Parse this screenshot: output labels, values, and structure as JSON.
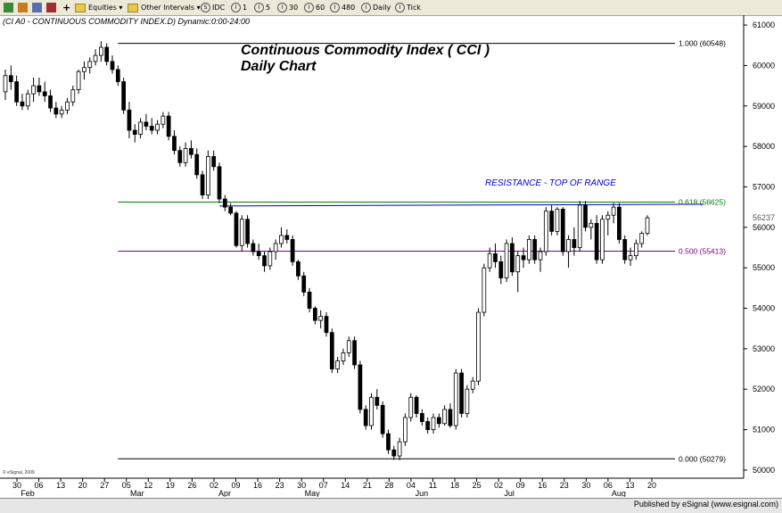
{
  "toolbar": {
    "equities": "Equities",
    "other_intervals": "Other Intervals",
    "idc": "IDC",
    "b1": "1",
    "b5": "5",
    "b30": "30",
    "b60": "60",
    "b480": "480",
    "daily": "Daily",
    "tick": "Tick"
  },
  "symbol_line": "(CI A0 - CONTINUOUS COMMODITY INDEX.D) Dynamic:0:00-24:00",
  "copyright": "© eSignal, 2009",
  "published": "Published by eSignal (www.esignal.com)",
  "colors": {
    "fib_top": "#000000",
    "fib_618": "#008000",
    "fib_500": "#800080",
    "fib_0": "#000000",
    "resistance": "#0000cc",
    "candle_down": "#000000",
    "candle_up": "#ffffff"
  },
  "chart_data": {
    "type": "candlestick",
    "title": "Continuous Commodity Index ( CCI )",
    "subtitle": "Daily Chart",
    "annotation": "RESISTANCE - TOP OF RANGE",
    "ylim": [
      49800,
      61200
    ],
    "y_ticks": [
      {
        "value": 61000,
        "label": "61000"
      },
      {
        "value": 60000,
        "label": "60000"
      },
      {
        "value": 59000,
        "label": "59000"
      },
      {
        "value": 58000,
        "label": "58000"
      },
      {
        "value": 57000,
        "label": "57000"
      },
      {
        "value": 56000,
        "label": "56000"
      },
      {
        "value": 55000,
        "label": "55000"
      },
      {
        "value": 54000,
        "label": "54000"
      },
      {
        "value": 53000,
        "label": "53000"
      },
      {
        "value": 52000,
        "label": "52000"
      },
      {
        "value": 51000,
        "label": "51000"
      },
      {
        "value": 50000,
        "label": "50000"
      }
    ],
    "last_price": {
      "value": 56237,
      "label": "56237"
    },
    "fib_levels": [
      {
        "value": 60548,
        "label": "1.000 (60548)",
        "color": "#000000"
      },
      {
        "value": 56625,
        "label": "0.618 (56625)",
        "color": "#008000"
      },
      {
        "value": 55413,
        "label": "0.500 (55413)",
        "color": "#800080"
      },
      {
        "value": 50279,
        "label": "0.000 (50279)",
        "color": "#000000"
      }
    ],
    "resistance_line": {
      "value": 56550
    },
    "x_day_ticks": [
      "30",
      "06",
      "13",
      "20",
      "27",
      "05",
      "12",
      "19",
      "26",
      "02",
      "09",
      "16",
      "23",
      "30",
      "07",
      "14",
      "21",
      "28",
      "04",
      "11",
      "18",
      "25",
      "02",
      "09",
      "16",
      "23",
      "30",
      "06",
      "13",
      "20"
    ],
    "x_month_labels": [
      {
        "label": "Feb",
        "day_index": 0
      },
      {
        "label": "Mar",
        "day_index": 5
      },
      {
        "label": "Apr",
        "day_index": 9
      },
      {
        "label": "May",
        "day_index": 13
      },
      {
        "label": "Jun",
        "day_index": 18
      },
      {
        "label": "Jul",
        "day_index": 22
      },
      {
        "label": "Aug",
        "day_index": 27
      }
    ],
    "candles": [
      {
        "o": 59350,
        "h": 59900,
        "l": 59150,
        "c": 59750
      },
      {
        "o": 59750,
        "h": 60000,
        "l": 59400,
        "c": 59600
      },
      {
        "o": 59600,
        "h": 59750,
        "l": 59000,
        "c": 59100
      },
      {
        "o": 59100,
        "h": 59300,
        "l": 58900,
        "c": 59000
      },
      {
        "o": 59000,
        "h": 59400,
        "l": 58900,
        "c": 59300
      },
      {
        "o": 59300,
        "h": 59700,
        "l": 59100,
        "c": 59500
      },
      {
        "o": 59500,
        "h": 59700,
        "l": 59250,
        "c": 59350
      },
      {
        "o": 59350,
        "h": 59600,
        "l": 59100,
        "c": 59250
      },
      {
        "o": 59250,
        "h": 59400,
        "l": 58850,
        "c": 58950
      },
      {
        "o": 58950,
        "h": 59100,
        "l": 58700,
        "c": 58800
      },
      {
        "o": 58800,
        "h": 59000,
        "l": 58700,
        "c": 58900
      },
      {
        "o": 58900,
        "h": 59200,
        "l": 58800,
        "c": 59100
      },
      {
        "o": 59100,
        "h": 59500,
        "l": 59000,
        "c": 59400
      },
      {
        "o": 59400,
        "h": 59900,
        "l": 59300,
        "c": 59850
      },
      {
        "o": 59850,
        "h": 60100,
        "l": 59650,
        "c": 59950
      },
      {
        "o": 59950,
        "h": 60200,
        "l": 59800,
        "c": 60100
      },
      {
        "o": 60100,
        "h": 60400,
        "l": 60000,
        "c": 60250
      },
      {
        "o": 60250,
        "h": 60600,
        "l": 60100,
        "c": 60450
      },
      {
        "o": 60450,
        "h": 60550,
        "l": 60000,
        "c": 60100
      },
      {
        "o": 60100,
        "h": 60250,
        "l": 59800,
        "c": 59900
      },
      {
        "o": 59900,
        "h": 60000,
        "l": 59500,
        "c": 59600
      },
      {
        "o": 59600,
        "h": 59700,
        "l": 58800,
        "c": 58900
      },
      {
        "o": 58900,
        "h": 59100,
        "l": 58200,
        "c": 58400
      },
      {
        "o": 58400,
        "h": 58550,
        "l": 58100,
        "c": 58300
      },
      {
        "o": 58300,
        "h": 58700,
        "l": 58200,
        "c": 58600
      },
      {
        "o": 58600,
        "h": 58800,
        "l": 58400,
        "c": 58500
      },
      {
        "o": 58500,
        "h": 58700,
        "l": 58300,
        "c": 58400
      },
      {
        "o": 58400,
        "h": 58650,
        "l": 58300,
        "c": 58550
      },
      {
        "o": 58550,
        "h": 58850,
        "l": 58450,
        "c": 58750
      },
      {
        "o": 58750,
        "h": 58850,
        "l": 58150,
        "c": 58250
      },
      {
        "o": 58250,
        "h": 58400,
        "l": 57800,
        "c": 57900
      },
      {
        "o": 57900,
        "h": 58000,
        "l": 57500,
        "c": 57600
      },
      {
        "o": 57600,
        "h": 58100,
        "l": 57500,
        "c": 57950
      },
      {
        "o": 57950,
        "h": 58150,
        "l": 57700,
        "c": 57800
      },
      {
        "o": 57800,
        "h": 57950,
        "l": 57200,
        "c": 57300
      },
      {
        "o": 57300,
        "h": 57400,
        "l": 56700,
        "c": 56800
      },
      {
        "o": 56800,
        "h": 57900,
        "l": 56700,
        "c": 57750
      },
      {
        "o": 57750,
        "h": 57900,
        "l": 57400,
        "c": 57500
      },
      {
        "o": 57500,
        "h": 57600,
        "l": 56600,
        "c": 56700
      },
      {
        "o": 56700,
        "h": 56800,
        "l": 56400,
        "c": 56500
      },
      {
        "o": 56500,
        "h": 56600,
        "l": 56300,
        "c": 56350
      },
      {
        "o": 56350,
        "h": 56400,
        "l": 55500,
        "c": 55550
      },
      {
        "o": 55550,
        "h": 56300,
        "l": 55400,
        "c": 56200
      },
      {
        "o": 56200,
        "h": 56300,
        "l": 55500,
        "c": 55600
      },
      {
        "o": 55600,
        "h": 55700,
        "l": 55300,
        "c": 55400
      },
      {
        "o": 55400,
        "h": 55600,
        "l": 55200,
        "c": 55300
      },
      {
        "o": 55300,
        "h": 55400,
        "l": 54900,
        "c": 55050
      },
      {
        "o": 55050,
        "h": 55500,
        "l": 54950,
        "c": 55400
      },
      {
        "o": 55400,
        "h": 55700,
        "l": 55200,
        "c": 55600
      },
      {
        "o": 55600,
        "h": 56000,
        "l": 55500,
        "c": 55800
      },
      {
        "o": 55800,
        "h": 55950,
        "l": 55600,
        "c": 55700
      },
      {
        "o": 55700,
        "h": 55800,
        "l": 55050,
        "c": 55150
      },
      {
        "o": 55150,
        "h": 55200,
        "l": 54700,
        "c": 54800
      },
      {
        "o": 54800,
        "h": 54900,
        "l": 54300,
        "c": 54400
      },
      {
        "o": 54400,
        "h": 54500,
        "l": 53900,
        "c": 54000
      },
      {
        "o": 54000,
        "h": 54050,
        "l": 53600,
        "c": 53700
      },
      {
        "o": 53700,
        "h": 53950,
        "l": 53500,
        "c": 53800
      },
      {
        "o": 53800,
        "h": 53900,
        "l": 53300,
        "c": 53400
      },
      {
        "o": 53400,
        "h": 53500,
        "l": 52400,
        "c": 52500
      },
      {
        "o": 52500,
        "h": 52800,
        "l": 52400,
        "c": 52700
      },
      {
        "o": 52700,
        "h": 53000,
        "l": 52600,
        "c": 52900
      },
      {
        "o": 52900,
        "h": 53300,
        "l": 52800,
        "c": 53200
      },
      {
        "o": 53200,
        "h": 53300,
        "l": 52500,
        "c": 52600
      },
      {
        "o": 52600,
        "h": 52700,
        "l": 51400,
        "c": 51500
      },
      {
        "o": 51500,
        "h": 51600,
        "l": 51000,
        "c": 51100
      },
      {
        "o": 51100,
        "h": 51900,
        "l": 51000,
        "c": 51800
      },
      {
        "o": 51800,
        "h": 52000,
        "l": 51500,
        "c": 51600
      },
      {
        "o": 51600,
        "h": 51700,
        "l": 50800,
        "c": 50900
      },
      {
        "o": 50900,
        "h": 51000,
        "l": 50400,
        "c": 50500
      },
      {
        "o": 50500,
        "h": 50600,
        "l": 50250,
        "c": 50350
      },
      {
        "o": 50350,
        "h": 50800,
        "l": 50250,
        "c": 50700
      },
      {
        "o": 50700,
        "h": 51400,
        "l": 50600,
        "c": 51300
      },
      {
        "o": 51300,
        "h": 51900,
        "l": 51200,
        "c": 51800
      },
      {
        "o": 51800,
        "h": 51850,
        "l": 51300,
        "c": 51400
      },
      {
        "o": 51400,
        "h": 51500,
        "l": 51100,
        "c": 51200
      },
      {
        "o": 51200,
        "h": 51300,
        "l": 50900,
        "c": 51000
      },
      {
        "o": 51000,
        "h": 51400,
        "l": 50900,
        "c": 51300
      },
      {
        "o": 51300,
        "h": 51400,
        "l": 51050,
        "c": 51150
      },
      {
        "o": 51150,
        "h": 51600,
        "l": 51100,
        "c": 51500
      },
      {
        "o": 51500,
        "h": 51650,
        "l": 51050,
        "c": 51100
      },
      {
        "o": 51100,
        "h": 52500,
        "l": 51000,
        "c": 52400
      },
      {
        "o": 52400,
        "h": 52500,
        "l": 51300,
        "c": 51400
      },
      {
        "o": 51400,
        "h": 52100,
        "l": 51300,
        "c": 52000
      },
      {
        "o": 52000,
        "h": 52300,
        "l": 51900,
        "c": 52200
      },
      {
        "o": 52200,
        "h": 54000,
        "l": 52100,
        "c": 53900
      },
      {
        "o": 53900,
        "h": 55100,
        "l": 53800,
        "c": 55000
      },
      {
        "o": 55000,
        "h": 55500,
        "l": 54900,
        "c": 55350
      },
      {
        "o": 55350,
        "h": 55600,
        "l": 55000,
        "c": 55150
      },
      {
        "o": 55150,
        "h": 55300,
        "l": 54600,
        "c": 54750
      },
      {
        "o": 54750,
        "h": 55700,
        "l": 54650,
        "c": 55600
      },
      {
        "o": 55600,
        "h": 55750,
        "l": 54800,
        "c": 54900
      },
      {
        "o": 54900,
        "h": 55400,
        "l": 54400,
        "c": 55300
      },
      {
        "o": 55300,
        "h": 55500,
        "l": 55000,
        "c": 55200
      },
      {
        "o": 55200,
        "h": 55800,
        "l": 55100,
        "c": 55700
      },
      {
        "o": 55700,
        "h": 55800,
        "l": 55100,
        "c": 55200
      },
      {
        "o": 55200,
        "h": 55500,
        "l": 54900,
        "c": 55400
      },
      {
        "o": 55400,
        "h": 56500,
        "l": 55300,
        "c": 56400
      },
      {
        "o": 56400,
        "h": 56550,
        "l": 55800,
        "c": 55900
      },
      {
        "o": 55900,
        "h": 56500,
        "l": 55800,
        "c": 56450
      },
      {
        "o": 56450,
        "h": 56500,
        "l": 55300,
        "c": 55400
      },
      {
        "o": 55400,
        "h": 55800,
        "l": 55000,
        "c": 55700
      },
      {
        "o": 55700,
        "h": 56000,
        "l": 55300,
        "c": 55500
      },
      {
        "o": 55500,
        "h": 56650,
        "l": 55400,
        "c": 56550
      },
      {
        "o": 56550,
        "h": 56650,
        "l": 55900,
        "c": 56000
      },
      {
        "o": 56000,
        "h": 56200,
        "l": 55700,
        "c": 56100
      },
      {
        "o": 56100,
        "h": 56300,
        "l": 55100,
        "c": 55200
      },
      {
        "o": 55200,
        "h": 56300,
        "l": 55100,
        "c": 56200
      },
      {
        "o": 56200,
        "h": 56400,
        "l": 55800,
        "c": 56300
      },
      {
        "o": 56300,
        "h": 56600,
        "l": 56100,
        "c": 56500
      },
      {
        "o": 56500,
        "h": 56600,
        "l": 55600,
        "c": 55700
      },
      {
        "o": 55700,
        "h": 55800,
        "l": 55100,
        "c": 55200
      },
      {
        "o": 55200,
        "h": 55500,
        "l": 55050,
        "c": 55300
      },
      {
        "o": 55300,
        "h": 55700,
        "l": 55200,
        "c": 55600
      },
      {
        "o": 55600,
        "h": 55900,
        "l": 55500,
        "c": 55850
      },
      {
        "o": 55850,
        "h": 56300,
        "l": 55800,
        "c": 56237
      }
    ]
  }
}
